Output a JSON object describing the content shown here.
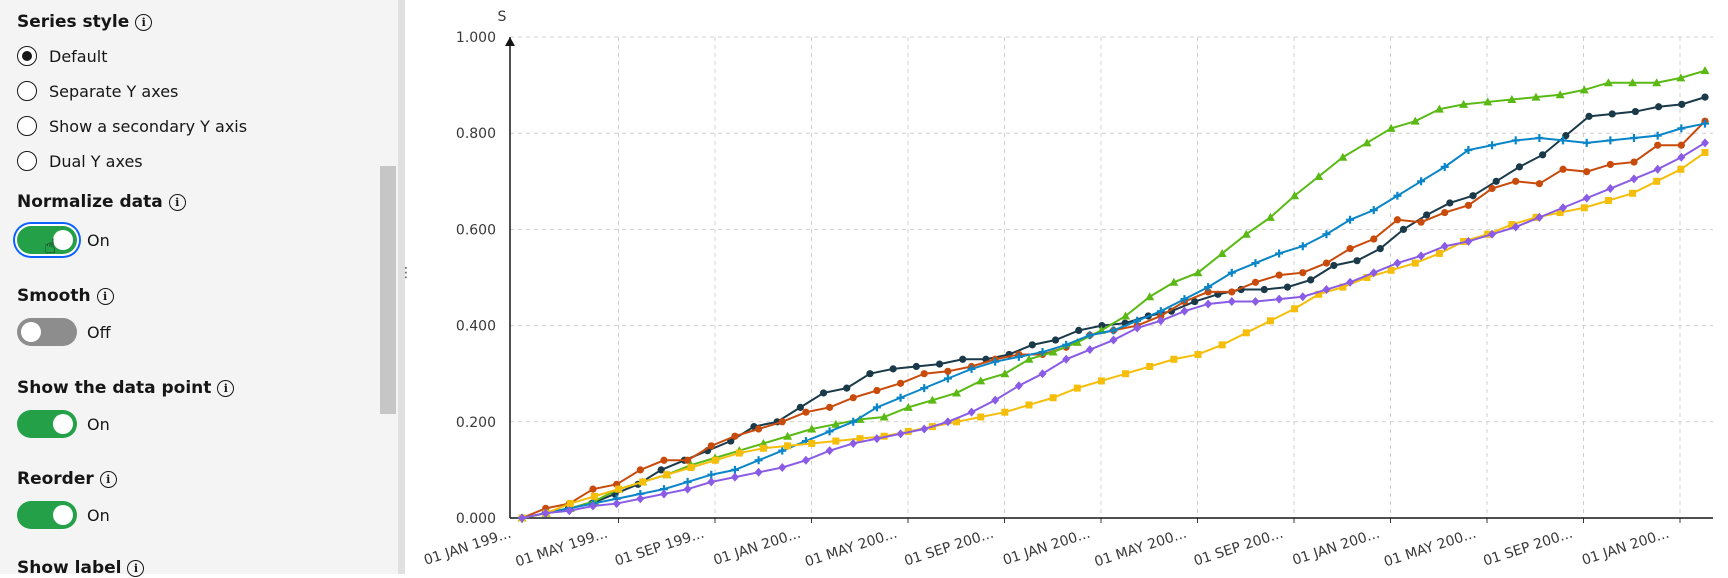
{
  "sidebar": {
    "series_style": {
      "title": "Series style",
      "options": [
        {
          "label": "Default",
          "selected": true
        },
        {
          "label": "Separate Y axes",
          "selected": false
        },
        {
          "label": "Show a secondary Y axis",
          "selected": false
        },
        {
          "label": "Dual Y axes",
          "selected": false
        }
      ]
    },
    "normalize": {
      "title": "Normalize data",
      "state": "On"
    },
    "smooth": {
      "title": "Smooth",
      "state": "Off"
    },
    "show_points": {
      "title": "Show the data point",
      "state": "On"
    },
    "reorder": {
      "title": "Reorder",
      "state": "On"
    },
    "show_label": {
      "title": "Show label"
    }
  },
  "colors": {
    "toggle_on": "#24a148",
    "toggle_off": "#8d8d8d",
    "focus": "#0f62fe"
  },
  "chart_data": {
    "type": "line",
    "ylabel": "S",
    "ylim": [
      0,
      1
    ],
    "yticks": [
      "0.000",
      "0.200",
      "0.400",
      "0.600",
      "0.800",
      "1.000"
    ],
    "xticks": [
      "01 JAN 199...",
      "01 MAY 199...",
      "01 SEP 199...",
      "01 JAN 200...",
      "01 MAY 200...",
      "01 SEP 200...",
      "01 JAN 200...",
      "01 MAY 200...",
      "01 SEP 200...",
      "01 JAN 200...",
      "01 MAY 200...",
      "01 SEP 200...",
      "01 JAN 200..."
    ],
    "grid": true,
    "series": [
      {
        "color": "#1a3a4a",
        "marker": "circle",
        "values": [
          0,
          0.01,
          0.02,
          0.03,
          0.05,
          0.07,
          0.1,
          0.12,
          0.14,
          0.16,
          0.19,
          0.2,
          0.23,
          0.26,
          0.27,
          0.3,
          0.31,
          0.315,
          0.32,
          0.33,
          0.33,
          0.34,
          0.36,
          0.37,
          0.39,
          0.4,
          0.405,
          0.42,
          0.43,
          0.45,
          0.465,
          0.475,
          0.475,
          0.48,
          0.495,
          0.525,
          0.535,
          0.56,
          0.6,
          0.63,
          0.655,
          0.67,
          0.7,
          0.73,
          0.755,
          0.795,
          0.835,
          0.84,
          0.845,
          0.855,
          0.86,
          0.875
        ]
      },
      {
        "color": "#c84b0c",
        "marker": "circle",
        "values": [
          0,
          0.02,
          0.03,
          0.06,
          0.07,
          0.1,
          0.12,
          0.12,
          0.15,
          0.17,
          0.185,
          0.2,
          0.22,
          0.23,
          0.25,
          0.265,
          0.28,
          0.3,
          0.305,
          0.315,
          0.33,
          0.34,
          0.34,
          0.355,
          0.38,
          0.39,
          0.4,
          0.42,
          0.45,
          0.47,
          0.47,
          0.49,
          0.505,
          0.51,
          0.53,
          0.56,
          0.58,
          0.62,
          0.615,
          0.635,
          0.65,
          0.685,
          0.7,
          0.695,
          0.725,
          0.72,
          0.735,
          0.74,
          0.775,
          0.775,
          0.825
        ]
      },
      {
        "color": "#5bb915",
        "marker": "triangle",
        "values": [
          0,
          0.01,
          0.02,
          0.035,
          0.06,
          0.075,
          0.09,
          0.11,
          0.125,
          0.14,
          0.155,
          0.17,
          0.185,
          0.195,
          0.205,
          0.21,
          0.23,
          0.245,
          0.26,
          0.285,
          0.3,
          0.33,
          0.345,
          0.365,
          0.39,
          0.42,
          0.46,
          0.49,
          0.51,
          0.55,
          0.59,
          0.625,
          0.67,
          0.71,
          0.75,
          0.78,
          0.81,
          0.825,
          0.85,
          0.86,
          0.865,
          0.87,
          0.875,
          0.88,
          0.89,
          0.905,
          0.905,
          0.905,
          0.915,
          0.93
        ]
      },
      {
        "color": "#0a85c7",
        "marker": "plus",
        "values": [
          0,
          0.01,
          0.02,
          0.03,
          0.04,
          0.05,
          0.06,
          0.075,
          0.09,
          0.1,
          0.12,
          0.14,
          0.16,
          0.18,
          0.2,
          0.23,
          0.25,
          0.27,
          0.29,
          0.31,
          0.325,
          0.335,
          0.345,
          0.36,
          0.38,
          0.39,
          0.41,
          0.43,
          0.455,
          0.48,
          0.51,
          0.53,
          0.55,
          0.565,
          0.59,
          0.62,
          0.64,
          0.67,
          0.7,
          0.73,
          0.765,
          0.775,
          0.785,
          0.79,
          0.785,
          0.78,
          0.785,
          0.79,
          0.795,
          0.81,
          0.82
        ]
      },
      {
        "color": "#f5be0b",
        "marker": "square",
        "values": [
          0,
          0.01,
          0.03,
          0.045,
          0.06,
          0.075,
          0.09,
          0.105,
          0.12,
          0.135,
          0.145,
          0.15,
          0.155,
          0.16,
          0.165,
          0.17,
          0.18,
          0.19,
          0.2,
          0.21,
          0.22,
          0.235,
          0.25,
          0.27,
          0.285,
          0.3,
          0.315,
          0.33,
          0.34,
          0.36,
          0.385,
          0.41,
          0.435,
          0.465,
          0.48,
          0.5,
          0.515,
          0.53,
          0.55,
          0.575,
          0.59,
          0.61,
          0.625,
          0.635,
          0.645,
          0.66,
          0.675,
          0.7,
          0.725,
          0.76
        ]
      },
      {
        "color": "#8a5ce6",
        "marker": "diamond",
        "values": [
          0,
          0.01,
          0.015,
          0.025,
          0.03,
          0.04,
          0.05,
          0.06,
          0.075,
          0.085,
          0.095,
          0.105,
          0.12,
          0.14,
          0.155,
          0.165,
          0.175,
          0.185,
          0.2,
          0.22,
          0.245,
          0.275,
          0.3,
          0.33,
          0.35,
          0.37,
          0.395,
          0.41,
          0.43,
          0.445,
          0.45,
          0.45,
          0.455,
          0.46,
          0.475,
          0.49,
          0.51,
          0.53,
          0.545,
          0.565,
          0.575,
          0.59,
          0.605,
          0.625,
          0.645,
          0.665,
          0.685,
          0.705,
          0.725,
          0.75,
          0.78
        ]
      }
    ]
  }
}
